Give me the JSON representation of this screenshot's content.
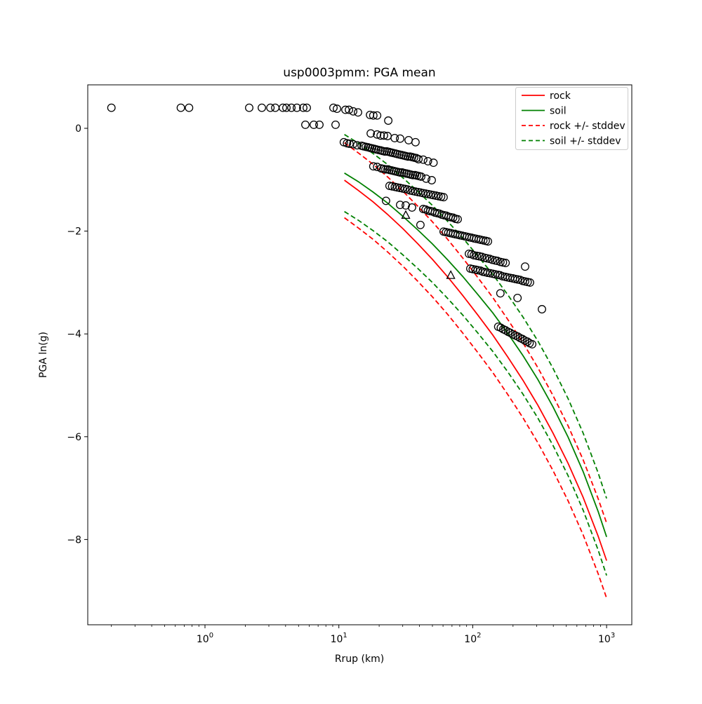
{
  "title": "usp0003pmm: PGA mean",
  "axes": {
    "xlabel": "Rrup (km)",
    "ylabel": "PGA ln(g)",
    "x_scale": "log",
    "x_range": [
      0.133,
      1542
    ],
    "y_range": [
      -9.66,
      0.85
    ],
    "x_ticks": [
      {
        "value": 1,
        "base": "10",
        "exp": "0"
      },
      {
        "value": 10,
        "base": "10",
        "exp": "1"
      },
      {
        "value": 100,
        "base": "10",
        "exp": "2"
      },
      {
        "value": 1000,
        "base": "10",
        "exp": "3"
      }
    ],
    "y_ticks": [
      {
        "value": 0,
        "label": "0"
      },
      {
        "value": -2,
        "label": "−2"
      },
      {
        "value": -4,
        "label": "−4"
      },
      {
        "value": -6,
        "label": "−6"
      },
      {
        "value": -8,
        "label": "−8"
      }
    ],
    "grid": false
  },
  "legend": {
    "position": "upper right",
    "items": [
      {
        "label": "rock",
        "color": "#ff0000",
        "style": "solid"
      },
      {
        "label": "soil",
        "color": "#008000",
        "style": "solid"
      },
      {
        "label": "rock +/- stddev",
        "color": "#ff0000",
        "style": "dashed"
      },
      {
        "label": "soil +/- stddev",
        "color": "#008000",
        "style": "dashed"
      }
    ]
  },
  "colors": {
    "rock": "#ff0000",
    "soil": "#008000",
    "marker_edge": "#000000",
    "legend_border": "#cccccc"
  },
  "chart_data": {
    "type": "scatter",
    "title": "usp0003pmm: PGA mean",
    "xlabel": "Rrup (km)",
    "ylabel": "PGA ln(g)",
    "curves": {
      "x": [
        11,
        14,
        18,
        23,
        30,
        39,
        50,
        65,
        84,
        109,
        141,
        183,
        237,
        307,
        398,
        516,
        668,
        866,
        1000
      ],
      "soil_mean": [
        -0.87,
        -1.04,
        -1.24,
        -1.45,
        -1.71,
        -1.98,
        -2.25,
        -2.56,
        -2.88,
        -3.23,
        -3.59,
        -3.99,
        -4.42,
        -4.89,
        -5.42,
        -6.01,
        -6.68,
        -7.46,
        -7.95
      ],
      "rock_mean": [
        -1.01,
        -1.21,
        -1.43,
        -1.67,
        -1.95,
        -2.25,
        -2.55,
        -2.89,
        -3.25,
        -3.63,
        -4.02,
        -4.45,
        -4.9,
        -5.39,
        -5.93,
        -6.52,
        -7.18,
        -7.94,
        -8.41
      ],
      "soil_stddev": 0.75,
      "rock_stddev": 0.73
    },
    "scatter_circles": [
      [
        0.2,
        0.4
      ],
      [
        0.66,
        0.4
      ],
      [
        0.76,
        0.4
      ],
      [
        2.14,
        0.4
      ],
      [
        2.66,
        0.4
      ],
      [
        3.08,
        0.4
      ],
      [
        3.35,
        0.4
      ],
      [
        3.82,
        0.4
      ],
      [
        4.06,
        0.4
      ],
      [
        4.42,
        0.4
      ],
      [
        4.86,
        0.4
      ],
      [
        5.42,
        0.4
      ],
      [
        5.76,
        0.4
      ],
      [
        9.11,
        0.4
      ],
      [
        9.68,
        0.38
      ],
      [
        11.2,
        0.36
      ],
      [
        11.9,
        0.36
      ],
      [
        12.8,
        0.33
      ],
      [
        13.9,
        0.31
      ],
      [
        17.1,
        0.26
      ],
      [
        18.1,
        0.25
      ],
      [
        19.3,
        0.25
      ],
      [
        23.4,
        0.15
      ],
      [
        5.62,
        0.07
      ],
      [
        6.5,
        0.07
      ],
      [
        7.16,
        0.07
      ],
      [
        9.45,
        0.07
      ],
      [
        17.3,
        -0.1
      ],
      [
        19.3,
        -0.12
      ],
      [
        20.5,
        -0.14
      ],
      [
        21.7,
        -0.14
      ],
      [
        23.1,
        -0.15
      ],
      [
        26.1,
        -0.19
      ],
      [
        28.7,
        -0.2
      ],
      [
        33.2,
        -0.23
      ],
      [
        37.4,
        -0.27
      ],
      [
        10.9,
        -0.27
      ],
      [
        11.5,
        -0.29
      ],
      [
        12.0,
        -0.3
      ],
      [
        12.8,
        -0.31
      ],
      [
        13.7,
        -0.33
      ],
      [
        14.8,
        -0.34
      ],
      [
        15.3,
        -0.35
      ],
      [
        15.9,
        -0.36
      ],
      [
        16.5,
        -0.37
      ],
      [
        17.1,
        -0.38
      ],
      [
        17.7,
        -0.39
      ],
      [
        18.4,
        -0.4
      ],
      [
        19.0,
        -0.41
      ],
      [
        19.7,
        -0.42
      ],
      [
        20.5,
        -0.43
      ],
      [
        21.2,
        -0.44
      ],
      [
        22.0,
        -0.45
      ],
      [
        22.8,
        -0.45
      ],
      [
        23.7,
        -0.46
      ],
      [
        24.5,
        -0.47
      ],
      [
        25.4,
        -0.48
      ],
      [
        26.4,
        -0.49
      ],
      [
        27.3,
        -0.5
      ],
      [
        28.4,
        -0.51
      ],
      [
        29.4,
        -0.52
      ],
      [
        30.5,
        -0.53
      ],
      [
        31.6,
        -0.54
      ],
      [
        32.8,
        -0.55
      ],
      [
        34.0,
        -0.55
      ],
      [
        35.2,
        -0.56
      ],
      [
        36.5,
        -0.57
      ],
      [
        37.9,
        -0.58
      ],
      [
        39.3,
        -0.6
      ],
      [
        42.7,
        -0.61
      ],
      [
        46.3,
        -0.64
      ],
      [
        50.9,
        -0.67
      ],
      [
        18.1,
        -0.74
      ],
      [
        19.3,
        -0.75
      ],
      [
        20.7,
        -0.78
      ],
      [
        21.5,
        -0.79
      ],
      [
        22.3,
        -0.8
      ],
      [
        23.1,
        -0.8
      ],
      [
        23.9,
        -0.81
      ],
      [
        24.8,
        -0.82
      ],
      [
        25.7,
        -0.83
      ],
      [
        26.7,
        -0.84
      ],
      [
        27.7,
        -0.85
      ],
      [
        28.7,
        -0.86
      ],
      [
        29.7,
        -0.86
      ],
      [
        30.8,
        -0.87
      ],
      [
        32.0,
        -0.88
      ],
      [
        33.2,
        -0.89
      ],
      [
        34.4,
        -0.9
      ],
      [
        35.7,
        -0.91
      ],
      [
        37.0,
        -0.91
      ],
      [
        38.3,
        -0.92
      ],
      [
        39.8,
        -0.93
      ],
      [
        41.2,
        -0.94
      ],
      [
        44.9,
        -0.98
      ],
      [
        49.4,
        -1.01
      ],
      [
        23.9,
        -1.12
      ],
      [
        25.0,
        -1.13
      ],
      [
        26.2,
        -1.14
      ],
      [
        27.3,
        -1.15
      ],
      [
        28.6,
        -1.16
      ],
      [
        29.9,
        -1.17
      ],
      [
        31.2,
        -1.18
      ],
      [
        32.6,
        -1.19
      ],
      [
        34.1,
        -1.21
      ],
      [
        35.7,
        -1.22
      ],
      [
        37.3,
        -1.23
      ],
      [
        39.0,
        -1.24
      ],
      [
        40.7,
        -1.25
      ],
      [
        42.6,
        -1.26
      ],
      [
        44.5,
        -1.27
      ],
      [
        46.5,
        -1.28
      ],
      [
        48.6,
        -1.29
      ],
      [
        50.8,
        -1.3
      ],
      [
        53.1,
        -1.31
      ],
      [
        55.5,
        -1.32
      ],
      [
        58.0,
        -1.33
      ],
      [
        60.6,
        -1.34
      ],
      [
        22.5,
        -1.41
      ],
      [
        28.7,
        -1.49
      ],
      [
        31.6,
        -1.5
      ],
      [
        35.2,
        -1.54
      ],
      [
        42.7,
        -1.57
      ],
      [
        44.5,
        -1.58
      ],
      [
        46.3,
        -1.6
      ],
      [
        48.1,
        -1.61
      ],
      [
        50.0,
        -1.62
      ],
      [
        52.1,
        -1.64
      ],
      [
        54.2,
        -1.65
      ],
      [
        56.3,
        -1.66
      ],
      [
        58.6,
        -1.68
      ],
      [
        61.0,
        -1.69
      ],
      [
        63.4,
        -1.7
      ],
      [
        66.0,
        -1.72
      ],
      [
        68.6,
        -1.73
      ],
      [
        71.4,
        -1.74
      ],
      [
        74.3,
        -1.76
      ],
      [
        77.2,
        -1.77
      ],
      [
        40.7,
        -1.88
      ],
      [
        60.6,
        -2.01
      ],
      [
        63.1,
        -2.02
      ],
      [
        65.7,
        -2.03
      ],
      [
        68.4,
        -2.04
      ],
      [
        71.2,
        -2.05
      ],
      [
        74.1,
        -2.06
      ],
      [
        77.1,
        -2.07
      ],
      [
        80.3,
        -2.08
      ],
      [
        83.6,
        -2.09
      ],
      [
        87.0,
        -2.1
      ],
      [
        90.5,
        -2.11
      ],
      [
        94.2,
        -2.12
      ],
      [
        98.1,
        -2.13
      ],
      [
        102,
        -2.14
      ],
      [
        106,
        -2.15
      ],
      [
        111,
        -2.16
      ],
      [
        115,
        -2.17
      ],
      [
        120,
        -2.18
      ],
      [
        125,
        -2.19
      ],
      [
        130,
        -2.2
      ],
      [
        93.7,
        -2.44
      ],
      [
        98.0,
        -2.45
      ],
      [
        102,
        -2.47
      ],
      [
        107,
        -2.48
      ],
      [
        112,
        -2.49
      ],
      [
        117,
        -2.5
      ],
      [
        123,
        -2.52
      ],
      [
        128,
        -2.53
      ],
      [
        134,
        -2.54
      ],
      [
        140,
        -2.56
      ],
      [
        147,
        -2.57
      ],
      [
        153,
        -2.58
      ],
      [
        161,
        -2.6
      ],
      [
        168,
        -2.61
      ],
      [
        176,
        -2.62
      ],
      [
        246,
        -2.69
      ],
      [
        96.0,
        -2.73
      ],
      [
        100,
        -2.74
      ],
      [
        105,
        -2.75
      ],
      [
        109,
        -2.76
      ],
      [
        114,
        -2.77
      ],
      [
        119,
        -2.79
      ],
      [
        124,
        -2.8
      ],
      [
        129,
        -2.81
      ],
      [
        135,
        -2.82
      ],
      [
        141,
        -2.83
      ],
      [
        147,
        -2.84
      ],
      [
        154,
        -2.85
      ],
      [
        160,
        -2.86
      ],
      [
        167,
        -2.88
      ],
      [
        175,
        -2.89
      ],
      [
        182,
        -2.9
      ],
      [
        190,
        -2.91
      ],
      [
        199,
        -2.92
      ],
      [
        207,
        -2.93
      ],
      [
        216,
        -2.94
      ],
      [
        226,
        -2.95
      ],
      [
        236,
        -2.97
      ],
      [
        246,
        -2.98
      ],
      [
        257,
        -2.99
      ],
      [
        268,
        -3.0
      ],
      [
        161,
        -3.21
      ],
      [
        216,
        -3.3
      ],
      [
        329,
        -3.52
      ],
      [
        155,
        -3.86
      ],
      [
        162,
        -3.88
      ],
      [
        169,
        -3.91
      ],
      [
        176,
        -3.93
      ],
      [
        184,
        -3.96
      ],
      [
        191,
        -3.98
      ],
      [
        199,
        -4.01
      ],
      [
        208,
        -4.03
      ],
      [
        217,
        -4.05
      ],
      [
        226,
        -4.08
      ],
      [
        235,
        -4.1
      ],
      [
        245,
        -4.13
      ],
      [
        256,
        -4.15
      ],
      [
        266,
        -4.18
      ],
      [
        278,
        -4.2
      ]
    ],
    "scatter_triangles": [
      [
        31.6,
        -1.69
      ],
      [
        68.5,
        -2.86
      ]
    ]
  }
}
